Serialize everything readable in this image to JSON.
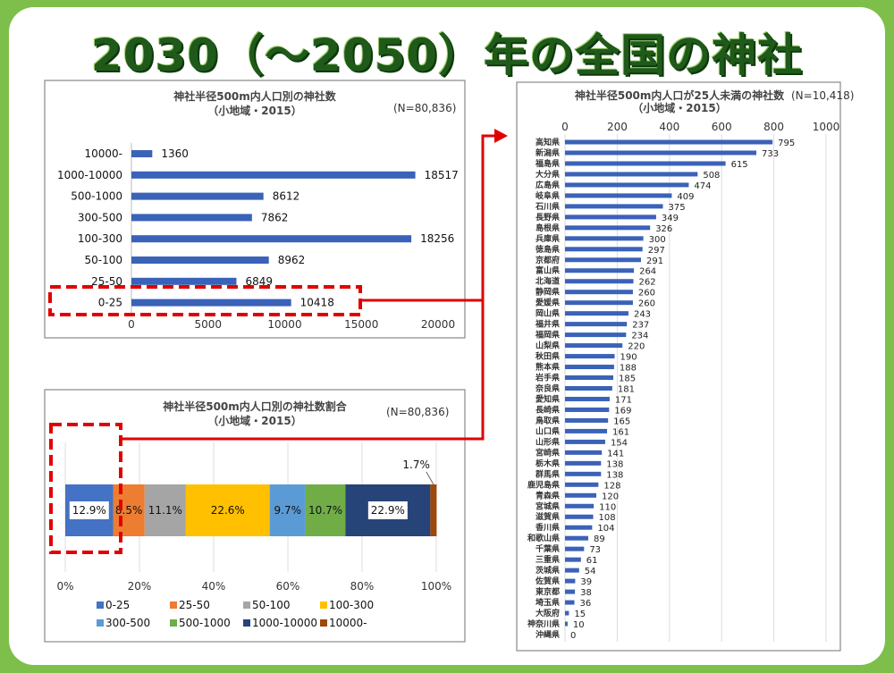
{
  "slide": {
    "title": "2030（～2050）年の全国の神社"
  },
  "colors": {
    "background": "#7dbf4a",
    "title": "#1f5a1a",
    "bar": "#3a62b8",
    "highlight": "#e00000"
  },
  "chart_data": [
    {
      "type": "bar",
      "orientation": "horizontal",
      "title": "神社半径500m内人口別の神社数",
      "subtitle": "（小地域・2015）",
      "note": "(N=80,836)",
      "categories": [
        "10000-",
        "1000-10000",
        "500-1000",
        "300-500",
        "100-300",
        "50-100",
        "25-50",
        "0-25"
      ],
      "values": [
        1360,
        18517,
        8612,
        7862,
        18256,
        8962,
        6849,
        10418
      ],
      "xlim": [
        0,
        20000
      ],
      "xticks": [
        "0",
        "5000",
        "10000",
        "15000",
        "20000"
      ],
      "highlighted_category": "0-25",
      "color": "#3a62b8"
    },
    {
      "type": "bar",
      "orientation": "horizontal",
      "stacked": true,
      "title": "神社半径500m内人口別の神社数割合",
      "subtitle": "（小地域・2015）",
      "note": "(N=80,836)",
      "series": [
        {
          "name": "0-25",
          "value": 12.9,
          "label": "12.9%",
          "color": "#4472c4"
        },
        {
          "name": "25-50",
          "value": 8.5,
          "label": "8.5%",
          "color": "#ed7d31"
        },
        {
          "name": "50-100",
          "value": 11.1,
          "label": "11.1%",
          "color": "#a5a5a5"
        },
        {
          "name": "100-300",
          "value": 22.6,
          "label": "22.6%",
          "color": "#ffc000"
        },
        {
          "name": "300-500",
          "value": 9.7,
          "label": "9.7%",
          "color": "#5b9bd5"
        },
        {
          "name": "500-1000",
          "value": 10.7,
          "label": "10.7%",
          "color": "#70ad47"
        },
        {
          "name": "1000-10000",
          "value": 22.9,
          "label": "22.9%",
          "color": "#264478"
        },
        {
          "name": "10000-",
          "value": 1.7,
          "label": "1.7%",
          "color": "#9e480e"
        }
      ],
      "xticks": [
        "0%",
        "20%",
        "40%",
        "60%",
        "80%",
        "100%"
      ],
      "xlim": [
        0,
        100
      ],
      "legend": "bottom",
      "grid": true
    },
    {
      "type": "bar",
      "orientation": "horizontal",
      "title": "神社半径500m内人口が25人未満の神社数",
      "subtitle": "（小地域・2015）",
      "note": "(N=10,418)",
      "xlim": [
        0,
        1000
      ],
      "xticks": [
        "0",
        "200",
        "400",
        "600",
        "800",
        "1000"
      ],
      "grid": true,
      "color": "#3a62b8",
      "categories": [
        "高知県",
        "新潟県",
        "福島県",
        "大分県",
        "広島県",
        "岐阜県",
        "石川県",
        "長野県",
        "島根県",
        "兵庫県",
        "徳島県",
        "京都府",
        "富山県",
        "北海道",
        "静岡県",
        "愛媛県",
        "岡山県",
        "福井県",
        "福岡県",
        "山梨県",
        "秋田県",
        "熊本県",
        "岩手県",
        "奈良県",
        "愛知県",
        "長崎県",
        "鳥取県",
        "山口県",
        "山形県",
        "宮崎県",
        "栃木県",
        "群馬県",
        "鹿児島県",
        "青森県",
        "宮城県",
        "滋賀県",
        "香川県",
        "和歌山県",
        "千葉県",
        "三重県",
        "茨城県",
        "佐賀県",
        "東京都",
        "埼玉県",
        "大阪府",
        "神奈川県",
        "沖縄県"
      ],
      "values": [
        795,
        733,
        615,
        508,
        474,
        409,
        375,
        349,
        326,
        300,
        297,
        291,
        264,
        262,
        260,
        260,
        243,
        237,
        234,
        220,
        190,
        188,
        185,
        181,
        171,
        169,
        165,
        161,
        154,
        141,
        138,
        138,
        128,
        120,
        110,
        108,
        104,
        89,
        73,
        61,
        54,
        39,
        38,
        36,
        15,
        10,
        0
      ]
    }
  ]
}
